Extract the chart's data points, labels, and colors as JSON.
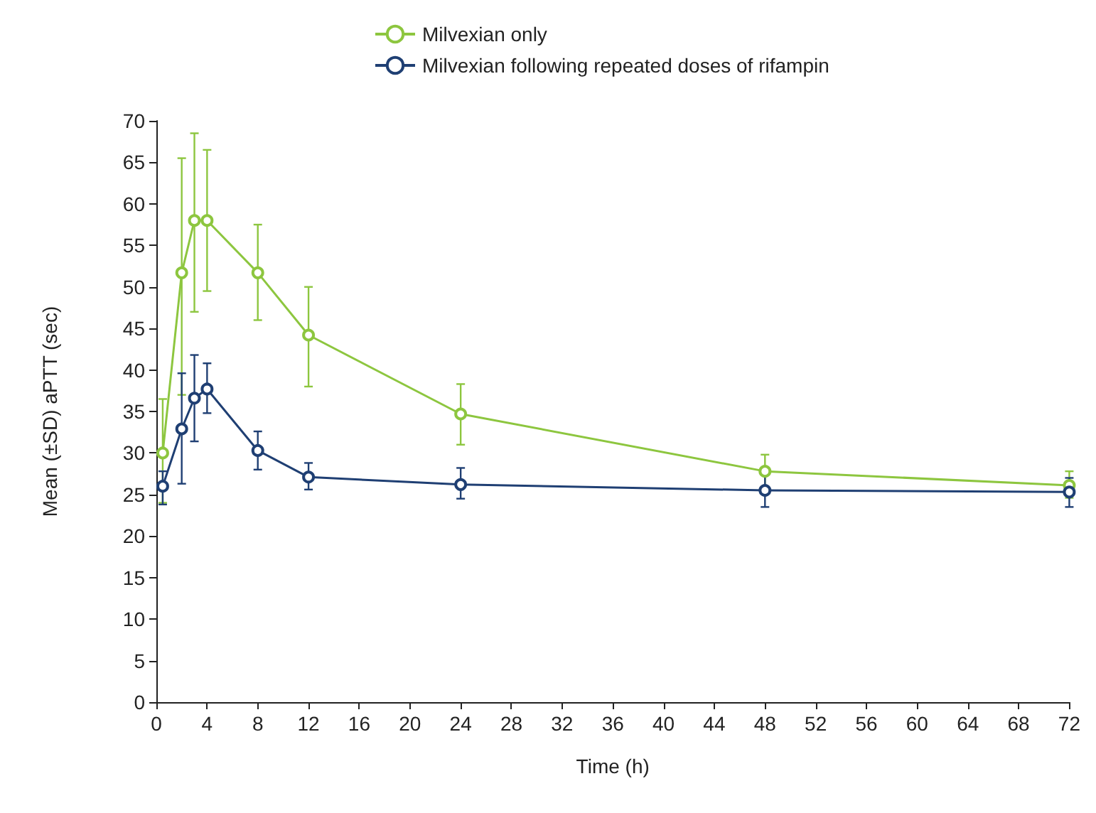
{
  "chart_data": {
    "type": "line",
    "xlabel": "Time (h)",
    "ylabel": "Mean (±SD) aPTT (sec)",
    "x": [
      0.5,
      2,
      3,
      4,
      8,
      12,
      24,
      48,
      72
    ],
    "series": [
      {
        "name": "Milvexian only",
        "color": "#8dc63f",
        "values": [
          30,
          51.7,
          58,
          58,
          51.7,
          44.2,
          34.7,
          27.8,
          26.1
        ],
        "errors": [
          [
            24,
            36.5
          ],
          [
            37,
            65.5
          ],
          [
            47,
            68.5
          ],
          [
            49.5,
            66.5
          ],
          [
            46,
            57.5
          ],
          [
            38,
            50
          ],
          [
            31,
            38.3
          ],
          [
            25.8,
            29.8
          ],
          [
            24.6,
            27.8
          ]
        ]
      },
      {
        "name": "Milvexian following repeated doses of rifampin",
        "color": "#1f3f73",
        "values": [
          26,
          32.9,
          36.6,
          37.7,
          30.3,
          27.1,
          26.2,
          25.5,
          25.3
        ],
        "errors": [
          [
            23.8,
            27.8
          ],
          [
            26.3,
            39.6
          ],
          [
            31.4,
            41.8
          ],
          [
            34.8,
            40.8
          ],
          [
            28,
            32.6
          ],
          [
            25.6,
            28.8
          ],
          [
            24.5,
            28.2
          ],
          [
            23.5,
            27.6
          ],
          [
            23.5,
            27
          ]
        ]
      }
    ],
    "xlim": [
      0,
      72
    ],
    "xticks": [
      0,
      4,
      8,
      12,
      16,
      20,
      24,
      28,
      32,
      36,
      40,
      44,
      48,
      52,
      56,
      60,
      64,
      68,
      72
    ],
    "ylim": [
      0,
      70
    ],
    "yticks": [
      0,
      5,
      10,
      15,
      20,
      25,
      30,
      35,
      40,
      45,
      50,
      55,
      60,
      65,
      70
    ],
    "grid": false,
    "legend": "top",
    "marker": "circle",
    "line_style": "solid"
  }
}
